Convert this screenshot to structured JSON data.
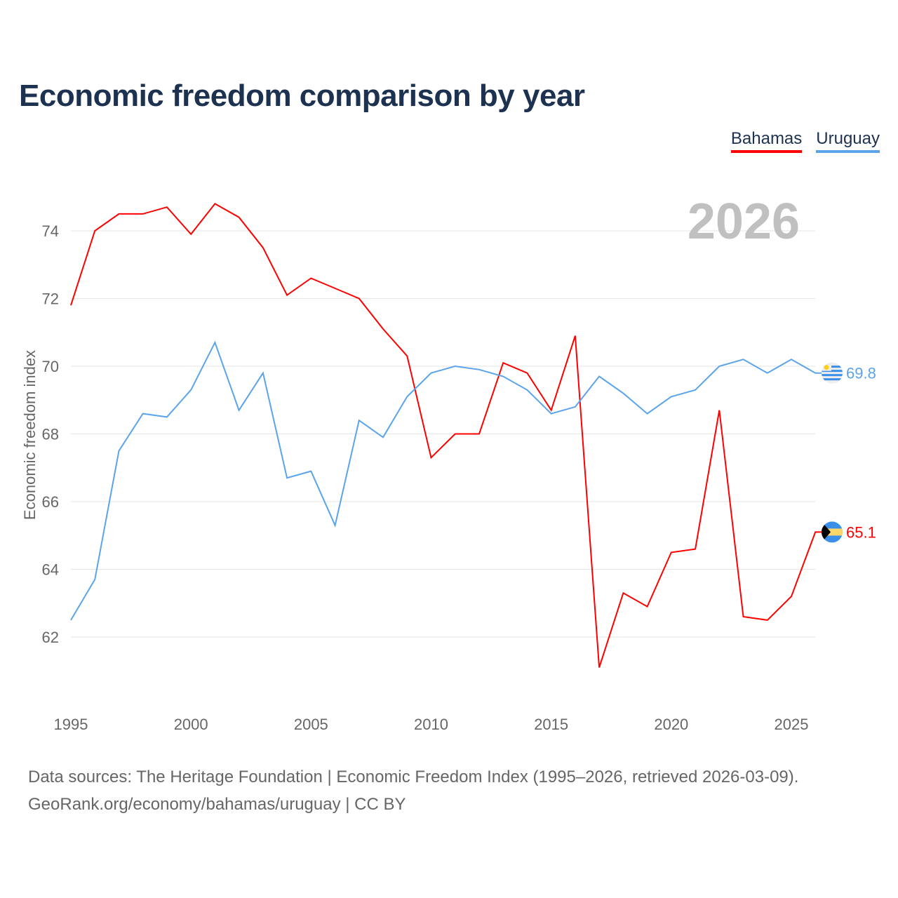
{
  "chart_data": {
    "type": "line",
    "title": "Economic freedom comparison by year",
    "xlabel": "",
    "ylabel": "Economic freedom index",
    "year_label": "2026",
    "x": [
      1995,
      1996,
      1997,
      1998,
      1999,
      2000,
      2001,
      2002,
      2003,
      2004,
      2005,
      2006,
      2007,
      2008,
      2009,
      2010,
      2011,
      2012,
      2013,
      2014,
      2015,
      2016,
      2017,
      2018,
      2019,
      2020,
      2021,
      2022,
      2023,
      2024,
      2025,
      2026
    ],
    "xticks": [
      "1995",
      "2000",
      "2005",
      "2010",
      "2015",
      "2020",
      "2025"
    ],
    "yticks": [
      "62",
      "64",
      "66",
      "68",
      "70",
      "72",
      "74"
    ],
    "ylim": [
      60,
      76
    ],
    "grid": true,
    "legend_position": "top-right",
    "series": [
      {
        "name": "Bahamas",
        "color": "#ff0000",
        "end_label": "65.1",
        "values": [
          71.8,
          74.0,
          74.5,
          74.5,
          74.7,
          73.9,
          74.8,
          74.4,
          73.5,
          72.1,
          72.6,
          72.3,
          72.0,
          71.1,
          70.3,
          67.3,
          68.0,
          68.0,
          70.1,
          69.8,
          68.7,
          70.9,
          61.1,
          63.3,
          62.9,
          64.5,
          64.6,
          68.7,
          62.6,
          62.5,
          63.2,
          65.1
        ]
      },
      {
        "name": "Uruguay",
        "color": "#5ba4ea",
        "end_label": "69.8",
        "values": [
          62.5,
          63.7,
          67.5,
          68.6,
          68.5,
          69.3,
          70.7,
          68.7,
          69.8,
          66.7,
          66.9,
          65.3,
          68.4,
          67.9,
          69.1,
          69.8,
          70.0,
          69.9,
          69.7,
          69.3,
          68.6,
          68.8,
          69.7,
          69.2,
          68.6,
          69.1,
          69.3,
          70.0,
          70.2,
          69.8,
          70.2,
          69.8
        ]
      }
    ]
  },
  "footer": {
    "line1": "Data sources: The Heritage Foundation | Economic Freedom Index (1995–2026, retrieved 2026-03-09).",
    "line2": "GeoRank.org/economy/bahamas/uruguay | CC BY"
  }
}
